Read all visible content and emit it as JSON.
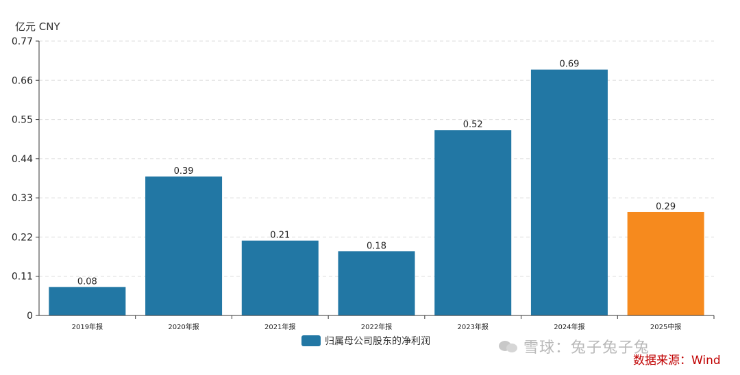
{
  "chart_data": {
    "type": "bar",
    "unit_label": "亿元  CNY",
    "categories": [
      "2019年报",
      "2020年报",
      "2021年报",
      "2022年报",
      "2023年报",
      "2024年报",
      "2025中报"
    ],
    "series": [
      {
        "name": "归属母公司股东的净利润",
        "values": [
          0.08,
          0.39,
          0.21,
          0.18,
          0.52,
          0.69,
          0.29
        ]
      }
    ],
    "bar_colors": [
      "#2277a4",
      "#2277a4",
      "#2277a4",
      "#2277a4",
      "#2277a4",
      "#2277a4",
      "#f68a1e"
    ],
    "ylim": [
      0,
      0.77
    ],
    "yticks": [
      "0",
      "0.11",
      "0.22",
      "0.33",
      "0.44",
      "0.55",
      "0.66",
      "0.77"
    ],
    "grid": true,
    "legend_position": "bottom",
    "legend_color": "#2277a4"
  },
  "watermark": {
    "text": "雪球：兔子兔子兔"
  },
  "source": {
    "text": "数据来源：Wind"
  }
}
